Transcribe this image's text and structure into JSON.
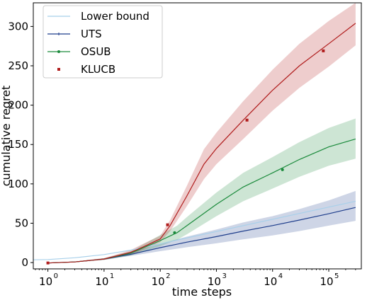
{
  "chart_data": {
    "type": "line",
    "title": "",
    "xlabel": "time steps",
    "ylabel": "cumulative regret",
    "xscale": "log",
    "xlim": [
      0.55,
      380000
    ],
    "ylim": [
      -8,
      330
    ],
    "grid": false,
    "legend_position": "top-left",
    "x_ticks": [
      {
        "value": 1,
        "label": "10",
        "exp": "0"
      },
      {
        "value": 10,
        "label": "10",
        "exp": "1"
      },
      {
        "value": 100,
        "label": "10",
        "exp": "2"
      },
      {
        "value": 1000,
        "label": "10",
        "exp": "3"
      },
      {
        "value": 10000,
        "label": "10",
        "exp": "4"
      },
      {
        "value": 100000,
        "label": "10",
        "exp": "5"
      }
    ],
    "y_ticks": [
      0,
      50,
      100,
      150,
      200,
      250,
      300
    ],
    "series": [
      {
        "name": "Lower bound",
        "color": "#a8d0ea",
        "marker": "none",
        "x": [
          0.55,
          1,
          3,
          10,
          30,
          100,
          300,
          1000,
          3000,
          10000,
          30000,
          100000,
          300000
        ],
        "y": [
          3.5,
          3.9,
          6.1,
          10.2,
          15.8,
          23.8,
          31.4,
          39.5,
          46.9,
          55,
          62.4,
          70.5,
          77.9
        ]
      },
      {
        "name": "UTS",
        "color": "#1f3e8c",
        "marker": "line-tick",
        "x": [
          1,
          3,
          10,
          30,
          100,
          300,
          1000,
          3000,
          10000,
          30000,
          100000,
          300000
        ],
        "y": [
          -0.5,
          0.8,
          4.5,
          10.5,
          19,
          26,
          33,
          40,
          47,
          54,
          62,
          70
        ],
        "band_low": [
          -0.5,
          0.5,
          3.5,
          8.5,
          14.5,
          19.5,
          24.5,
          29.5,
          34.5,
          40,
          47,
          53
        ],
        "band_high": [
          -0.5,
          1.2,
          5.5,
          13,
          24,
          33,
          42,
          51,
          59,
          68,
          79,
          91
        ]
      },
      {
        "name": "OSUB",
        "color": "#1a8a3b",
        "marker": "dot",
        "x": [
          1,
          3,
          10,
          30,
          100,
          200,
          300,
          1000,
          3000,
          10000,
          30000,
          100000,
          300000
        ],
        "y": [
          -0.5,
          0.8,
          4.5,
          12,
          28,
          38,
          47,
          74,
          96,
          114,
          131,
          147,
          157
        ],
        "band_low": [
          -0.5,
          0.5,
          3.5,
          9,
          21,
          29,
          36,
          59,
          78,
          94,
          109,
          123,
          132
        ],
        "band_high": [
          -0.5,
          1.2,
          5.5,
          14.5,
          35,
          47,
          58,
          89,
          114,
          134,
          153,
          171,
          183
        ]
      },
      {
        "name": "KLUCB",
        "color": "#b01c1c",
        "marker": "square",
        "x": [
          1,
          3,
          10,
          30,
          50,
          100,
          150,
          300,
          600,
          1000,
          3000,
          10000,
          30000,
          100000,
          300000
        ],
        "y": [
          -0.5,
          0.8,
          4.5,
          13,
          20,
          30,
          47,
          85,
          125,
          145,
          181,
          219,
          250,
          278,
          304
        ],
        "band_low": [
          -0.5,
          0.5,
          3.5,
          10,
          16,
          26,
          40,
          72,
          106,
          125,
          157,
          193,
          222,
          249,
          276
        ],
        "band_high": [
          -0.5,
          1.2,
          5.5,
          16,
          24,
          34,
          54,
          98,
          144,
          165,
          205,
          245,
          278,
          307,
          330
        ]
      }
    ],
    "markers": {
      "UTS": [],
      "OSUB": [
        {
          "x": 180,
          "y": 38
        },
        {
          "x": 15000,
          "y": 118
        }
      ],
      "KLUCB": [
        {
          "x": 1,
          "y": -0.5
        },
        {
          "x": 135,
          "y": 48
        },
        {
          "x": 3500,
          "y": 181
        },
        {
          "x": 80000,
          "y": 269
        }
      ]
    }
  }
}
